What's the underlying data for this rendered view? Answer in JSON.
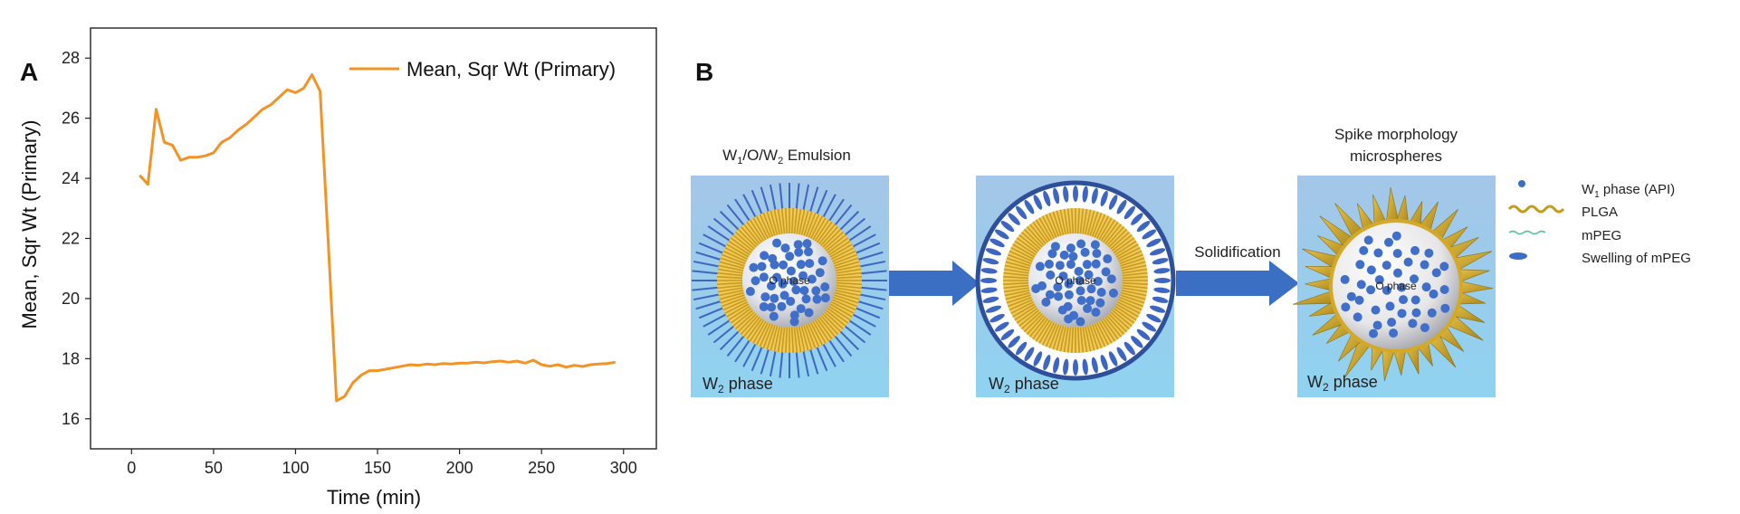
{
  "panels": {
    "a": {
      "letter": "A"
    },
    "b": {
      "letter": "B"
    }
  },
  "chart_data": {
    "type": "line",
    "title": "",
    "xlabel": "Time (min)",
    "ylabel": "Mean, Sqr Wt (Primary)",
    "xlim": [
      -25,
      320
    ],
    "ylim": [
      15,
      29
    ],
    "xticks": [
      0,
      50,
      100,
      150,
      200,
      250,
      300
    ],
    "yticks": [
      16,
      18,
      20,
      22,
      24,
      26,
      28
    ],
    "xtick_labels": [
      "0",
      "50",
      "100",
      "150",
      "200",
      "250",
      "300"
    ],
    "ytick_labels": [
      "16",
      "18",
      "20",
      "22",
      "24",
      "26",
      "28"
    ],
    "grid": false,
    "legend_position": "top-right",
    "series": [
      {
        "name": "Mean, Sqr Wt (Primary)",
        "color": "#f39325",
        "x": [
          5,
          10,
          15,
          20,
          25,
          30,
          35,
          40,
          45,
          50,
          55,
          60,
          65,
          70,
          75,
          80,
          85,
          90,
          95,
          100,
          105,
          110,
          115,
          120,
          125,
          130,
          135,
          140,
          145,
          150,
          155,
          160,
          165,
          170,
          175,
          180,
          185,
          190,
          195,
          200,
          205,
          210,
          215,
          220,
          225,
          230,
          235,
          240,
          245,
          250,
          255,
          260,
          265,
          270,
          275,
          280,
          285,
          290,
          295
        ],
        "y": [
          24.1,
          23.8,
          26.3,
          25.2,
          25.1,
          24.6,
          24.7,
          24.7,
          24.75,
          24.85,
          25.2,
          25.35,
          25.6,
          25.8,
          26.05,
          26.3,
          26.45,
          26.7,
          26.95,
          26.85,
          27.0,
          27.45,
          26.9,
          21.8,
          16.6,
          16.75,
          17.2,
          17.45,
          17.6,
          17.6,
          17.65,
          17.7,
          17.75,
          17.8,
          17.78,
          17.82,
          17.8,
          17.84,
          17.82,
          17.85,
          17.85,
          17.88,
          17.86,
          17.9,
          17.92,
          17.88,
          17.92,
          17.85,
          17.95,
          17.8,
          17.75,
          17.8,
          17.72,
          17.78,
          17.74,
          17.8,
          17.82,
          17.84,
          17.88
        ]
      }
    ]
  },
  "diagram": {
    "stage1": {
      "title_w1": "W",
      "title_sub1": "1",
      "title_mid": "/O/W",
      "title_sub2": "2",
      "title_end": " Emulsion",
      "core_label": "O phase",
      "phase_w": "W",
      "phase_sub": "2",
      "phase_rest": " phase"
    },
    "stage2": {
      "core_label": "O phase",
      "phase_w": "W",
      "phase_sub": "2",
      "phase_rest": " phase"
    },
    "stage3": {
      "title_line1": "Spike morphology",
      "title_line2": "microspheres",
      "core_label": "O phase",
      "phase_w": "W",
      "phase_sub": "2",
      "phase_rest": " phase"
    },
    "arrow2_label": "Solidification",
    "legend": [
      {
        "kind": "dot",
        "pre": "W",
        "sub": "1",
        "post": " phase (API)",
        "color": "#3b6fc4"
      },
      {
        "kind": "wave",
        "pre": "PLGA",
        "sub": "",
        "post": "",
        "color": "#b89a1e"
      },
      {
        "kind": "wave-thin",
        "pre": "mPEG",
        "sub": "",
        "post": "",
        "color": "#5fc2a4"
      },
      {
        "kind": "ellipse",
        "pre": "Swelling of mPEG",
        "sub": "",
        "post": "",
        "color": "#3b6fc4"
      }
    ],
    "colors": {
      "bg_top": "#9fc3e6",
      "bg_bottom": "#8fd0ee",
      "plga": "#d8a91e",
      "mpeg": "#3d66c2",
      "dot": "#3f6fc8",
      "arrow": "#3b6fc4"
    }
  }
}
